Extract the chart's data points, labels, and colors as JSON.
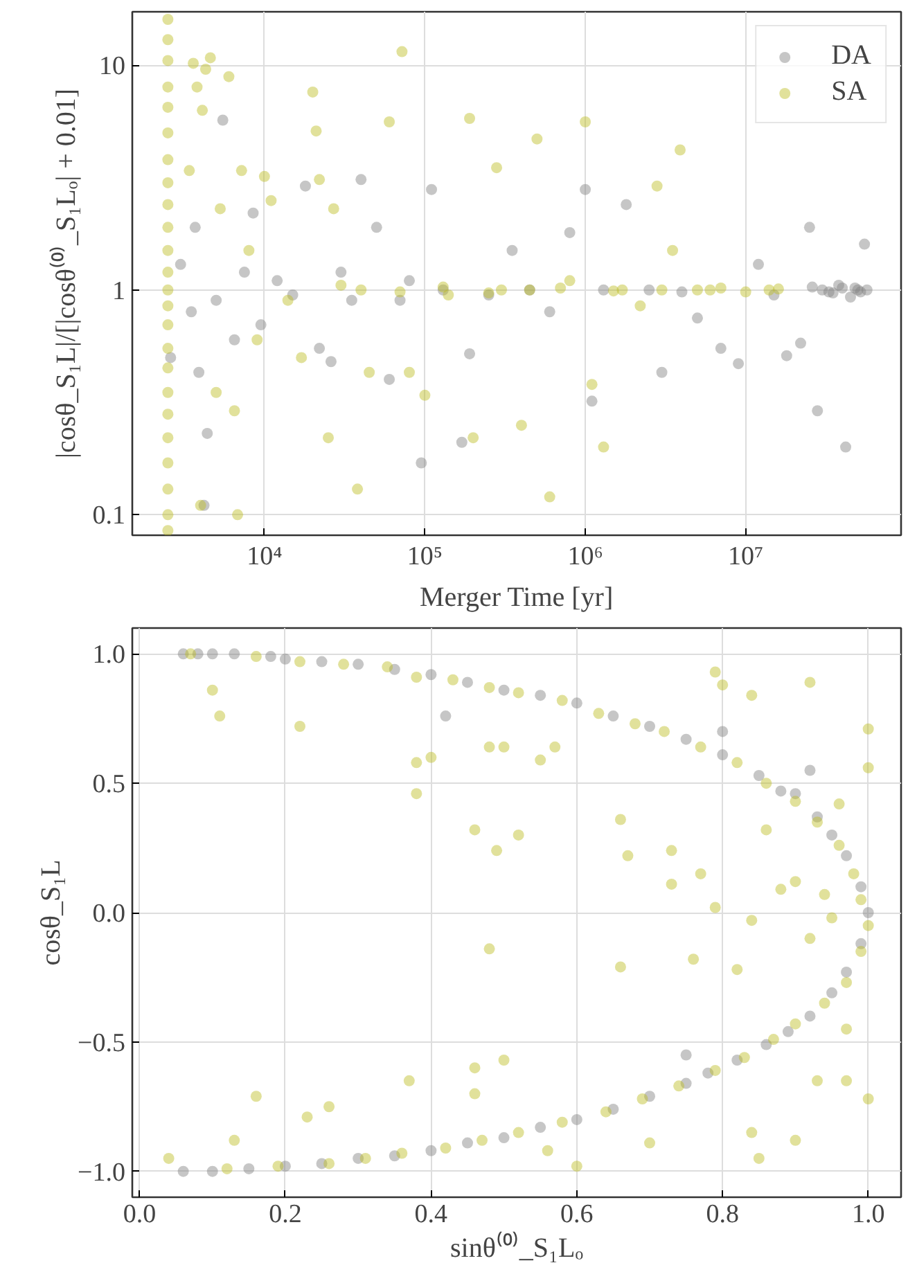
{
  "chart_data": [
    {
      "type": "scatter",
      "xlabel": "Merger Time [yr]",
      "ylabel": "|cosθ_S₁L|/[|cosθ⁽⁰⁾_S₁Lₒ| + 0.01]",
      "log": "xy",
      "grid": true,
      "legend": "top right",
      "marker": "circle",
      "xlim": [
        1500,
        93000000
      ],
      "ylim": [
        0.081,
        17.3
      ],
      "xticks": [
        {
          "value": 10000,
          "label": "10⁴"
        },
        {
          "value": 100000,
          "label": "10⁵"
        },
        {
          "value": 1000000,
          "label": "10⁶"
        },
        {
          "value": 10000000,
          "label": "10⁷"
        }
      ],
      "yticks": [
        0.1,
        1,
        10
      ],
      "series": [
        {
          "name": "DA",
          "color": "#808080",
          "x": [
            2600,
            3000,
            3500,
            3700,
            3900,
            4200,
            4400,
            5500,
            5000,
            6500,
            7500,
            8500,
            9500,
            12000,
            15000,
            18000,
            22000,
            26000,
            30000,
            35000,
            40000,
            50000,
            60000,
            70000,
            80000,
            95000,
            110000,
            130000,
            170000,
            190000,
            250000,
            350000,
            450000,
            600000,
            800000,
            1000000,
            1100000,
            1300000,
            1800000,
            2500000,
            3000000,
            4000000,
            5000000,
            7000000,
            9000000,
            12000000,
            15000000,
            18000000,
            22000000,
            25000000,
            28000000,
            30000000,
            35000000,
            38000000,
            42000000,
            45000000,
            48000000,
            52000000,
            55000000,
            57000000,
            50000000,
            40000000,
            33000000,
            26000000
          ],
          "values": [
            0.5,
            1.3,
            0.8,
            1.9,
            0.43,
            0.11,
            0.23,
            5.7,
            0.9,
            0.6,
            1.2,
            2.2,
            0.7,
            1.1,
            0.95,
            2.9,
            0.55,
            0.48,
            1.2,
            0.9,
            3.1,
            1.9,
            0.4,
            0.9,
            1.1,
            0.17,
            2.8,
            1.0,
            0.21,
            0.52,
            0.95,
            1.5,
            1.0,
            0.8,
            1.8,
            2.8,
            0.32,
            1.0,
            2.4,
            1.0,
            0.43,
            0.98,
            0.75,
            0.55,
            0.47,
            1.3,
            0.95,
            0.51,
            0.58,
            1.9,
            0.29,
            1.0,
            0.97,
            1.05,
            0.2,
            0.93,
            1.02,
            0.98,
            1.6,
            1.0,
            1.0,
            1.02,
            0.98,
            1.03
          ]
        },
        {
          "name": "SA",
          "color": "#bcbd22",
          "x": [
            2500,
            2500,
            2500,
            2500,
            2500,
            2500,
            2500,
            2500,
            2500,
            2500,
            2500,
            2500,
            2500,
            2500,
            2500,
            2500,
            2500,
            2500,
            2500,
            2500,
            2500,
            2500,
            2500,
            2500,
            3400,
            3600,
            3800,
            4000,
            4100,
            4300,
            4600,
            5000,
            5300,
            6000,
            6500,
            6800,
            7200,
            8000,
            9000,
            10000,
            11000,
            14000,
            17000,
            20000,
            21000,
            22000,
            25000,
            27000,
            30000,
            38000,
            45000,
            60000,
            72000,
            80000,
            100000,
            140000,
            190000,
            200000,
            280000,
            300000,
            400000,
            500000,
            600000,
            800000,
            1000000,
            1100000,
            1300000,
            1700000,
            2200000,
            2800000,
            3500000,
            3900000,
            5000000,
            7000000,
            10000000,
            14000000,
            16000000,
            40000,
            70000,
            130000,
            250000,
            450000,
            700000,
            1500000,
            3000000,
            6000000
          ],
          "values": [
            16,
            13,
            10.5,
            8,
            6.5,
            5,
            3.8,
            3,
            2.4,
            1.9,
            1.5,
            1.2,
            1.0,
            0.85,
            0.7,
            0.55,
            0.45,
            0.35,
            0.28,
            0.22,
            0.17,
            0.13,
            0.1,
            0.085,
            3.4,
            10.2,
            8,
            0.11,
            6.3,
            9.6,
            10.8,
            0.35,
            2.3,
            8.9,
            0.29,
            0.1,
            3.4,
            1.5,
            0.6,
            3.2,
            2.5,
            0.9,
            0.5,
            7.6,
            5.1,
            3.1,
            0.22,
            2.3,
            1.05,
            0.13,
            0.43,
            5.6,
            11.5,
            0.43,
            0.34,
            0.95,
            5.8,
            0.22,
            3.5,
            1.0,
            0.25,
            4.7,
            0.12,
            1.1,
            5.6,
            0.38,
            0.2,
            1.0,
            0.85,
            2.9,
            1.5,
            4.2,
            1.0,
            1.02,
            0.98,
            1.0,
            1.01,
            1.0,
            0.98,
            1.03,
            0.97,
            1.0,
            1.02,
            0.99,
            1.0,
            1.0
          ]
        }
      ]
    },
    {
      "type": "scatter",
      "xlabel": "sinθ⁽⁰⁾_S₁Lₒ",
      "ylabel": "cosθ_S₁L",
      "grid": true,
      "marker": "circle",
      "xlim": [
        -0.01,
        1.045
      ],
      "ylim": [
        -1.1,
        1.1
      ],
      "xticks": [
        {
          "value": 0,
          "label": "0.0"
        },
        0.2,
        0.4,
        0.6,
        0.8,
        {
          "value": 1,
          "label": "1.0"
        }
      ],
      "yticks": [
        {
          "value": -1,
          "label": "−1.0"
        },
        {
          "value": -0.5,
          "label": "−0.5"
        },
        {
          "value": 0,
          "label": "0.0"
        },
        0.5,
        {
          "value": 1,
          "label": "1.0"
        }
      ],
      "series": [
        {
          "color": "#808080",
          "x": [
            0.06,
            0.08,
            0.1,
            0.13,
            0.18,
            0.2,
            0.25,
            0.3,
            0.35,
            0.4,
            0.42,
            0.45,
            0.5,
            0.55,
            0.6,
            0.65,
            0.7,
            0.75,
            0.8,
            0.85,
            0.88,
            0.9,
            0.93,
            0.95,
            0.97,
            0.99,
            1.0,
            0.99,
            0.97,
            0.95,
            0.92,
            0.89,
            0.86,
            0.82,
            0.78,
            0.75,
            0.7,
            0.65,
            0.6,
            0.55,
            0.5,
            0.45,
            0.4,
            0.35,
            0.3,
            0.25,
            0.2,
            0.15,
            0.1,
            0.06,
            0.8,
            0.92,
            0.75
          ],
          "values": [
            1.0,
            1.0,
            1.0,
            1.0,
            0.99,
            0.98,
            0.97,
            0.96,
            0.94,
            0.92,
            0.76,
            0.89,
            0.86,
            0.84,
            0.81,
            0.76,
            0.72,
            0.67,
            0.61,
            0.53,
            0.47,
            0.46,
            0.37,
            0.3,
            0.22,
            0.1,
            0.0,
            -0.12,
            -0.23,
            -0.31,
            -0.4,
            -0.46,
            -0.51,
            -0.57,
            -0.62,
            -0.66,
            -0.71,
            -0.76,
            -0.8,
            -0.83,
            -0.87,
            -0.89,
            -0.92,
            -0.94,
            -0.95,
            -0.97,
            -0.98,
            -0.99,
            -1.0,
            -1.0,
            0.7,
            0.55,
            -0.55
          ]
        },
        {
          "color": "#bcbd22",
          "x": [
            0.07,
            0.16,
            0.22,
            0.28,
            0.34,
            0.38,
            0.43,
            0.48,
            0.52,
            0.58,
            0.63,
            0.68,
            0.72,
            0.77,
            0.82,
            0.86,
            0.9,
            0.93,
            0.96,
            0.98,
            0.99,
            1.0,
            0.99,
            0.97,
            0.94,
            0.9,
            0.87,
            0.83,
            0.79,
            0.74,
            0.69,
            0.64,
            0.58,
            0.52,
            0.47,
            0.42,
            0.36,
            0.31,
            0.26,
            0.19,
            0.12,
            0.1,
            0.11,
            0.22,
            0.38,
            0.38,
            0.4,
            0.48,
            0.5,
            0.46,
            0.49,
            0.52,
            0.48,
            0.55,
            0.57,
            0.66,
            0.66,
            0.67,
            0.73,
            0.73,
            0.77,
            0.79,
            0.79,
            0.8,
            0.84,
            0.92,
            0.76,
            0.82,
            0.84,
            0.88,
            0.9,
            0.94,
            0.95,
            1.0,
            1.0,
            1.0,
            0.97,
            0.93,
            0.85,
            0.84,
            0.9,
            0.7,
            0.6,
            0.56,
            0.16,
            0.13,
            0.04,
            0.26,
            0.23,
            0.37,
            0.46,
            0.5,
            0.46,
            0.86,
            0.96,
            0.97,
            0.92
          ],
          "values": [
            1.0,
            0.99,
            0.97,
            0.96,
            0.95,
            0.91,
            0.9,
            0.87,
            0.85,
            0.82,
            0.77,
            0.73,
            0.7,
            0.64,
            0.58,
            0.5,
            0.43,
            0.35,
            0.26,
            0.15,
            0.05,
            -0.05,
            -0.15,
            -0.27,
            -0.35,
            -0.43,
            -0.49,
            -0.56,
            -0.61,
            -0.67,
            -0.72,
            -0.77,
            -0.81,
            -0.85,
            -0.88,
            -0.91,
            -0.93,
            -0.95,
            -0.97,
            -0.98,
            -0.99,
            0.86,
            0.76,
            0.72,
            0.46,
            0.58,
            0.6,
            0.64,
            0.64,
            0.32,
            0.24,
            0.3,
            -0.14,
            0.59,
            0.64,
            0.36,
            -0.21,
            0.22,
            0.24,
            0.11,
            0.15,
            0.02,
            0.93,
            0.88,
            0.84,
            0.89,
            -0.18,
            -0.22,
            -0.03,
            0.09,
            0.12,
            0.07,
            -0.02,
            0.71,
            0.56,
            -0.72,
            -0.65,
            -0.65,
            -0.95,
            -0.85,
            -0.88,
            -0.89,
            -0.98,
            -0.92,
            -0.71,
            -0.88,
            -0.95,
            -0.75,
            -0.79,
            -0.65,
            -0.6,
            -0.57,
            -0.7,
            0.32,
            0.42,
            -0.45,
            -0.1
          ]
        }
      ]
    }
  ]
}
